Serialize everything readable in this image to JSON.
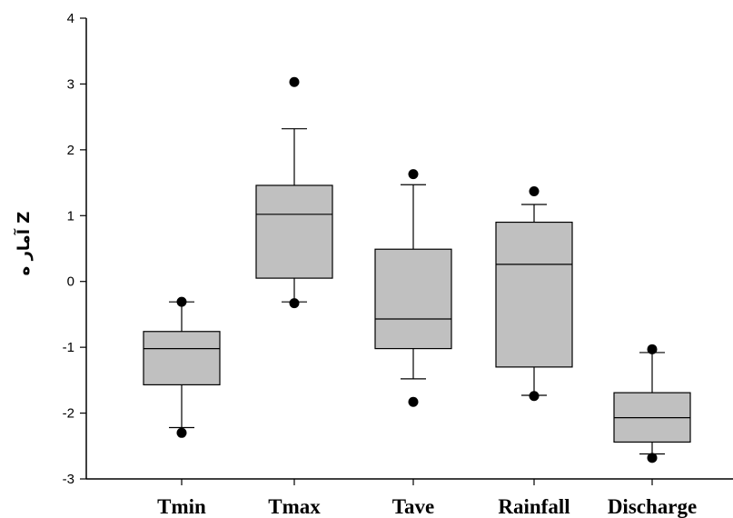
{
  "chart_data": {
    "type": "box",
    "title": "",
    "ylabel": "Z آمار ه",
    "xlabel": "",
    "ylim": [
      -3,
      4
    ],
    "yticks": [
      -3,
      -2,
      -1,
      0,
      1,
      2,
      3,
      4
    ],
    "grid": false,
    "box_color": "#c0c0c0",
    "categories": [
      "Tmin",
      "Tmax",
      "Tave",
      "Rainfall",
      "Discharge"
    ],
    "boxes": [
      {
        "name": "Tmin",
        "whisker_low": -2.22,
        "q1": -1.57,
        "median": -1.02,
        "q3": -0.76,
        "whisker_high": -0.31,
        "outliers": [
          -2.3,
          -0.31
        ]
      },
      {
        "name": "Tmax",
        "whisker_low": -0.31,
        "q1": 0.05,
        "median": 1.02,
        "q3": 1.46,
        "whisker_high": 2.32,
        "outliers": [
          3.03,
          -0.33
        ]
      },
      {
        "name": "Tave",
        "whisker_low": -1.48,
        "q1": -1.02,
        "median": -0.57,
        "q3": 0.49,
        "whisker_high": 1.47,
        "outliers": [
          1.63,
          -1.83
        ]
      },
      {
        "name": "Rainfall",
        "whisker_low": -1.73,
        "q1": -1.3,
        "median": 0.26,
        "q3": 0.9,
        "whisker_high": 1.17,
        "outliers": [
          1.37,
          -1.74
        ]
      },
      {
        "name": "Discharge",
        "whisker_low": -2.62,
        "q1": -2.44,
        "median": -2.07,
        "q3": -1.69,
        "whisker_high": -1.08,
        "outliers": [
          -1.03,
          -2.68
        ]
      }
    ]
  }
}
